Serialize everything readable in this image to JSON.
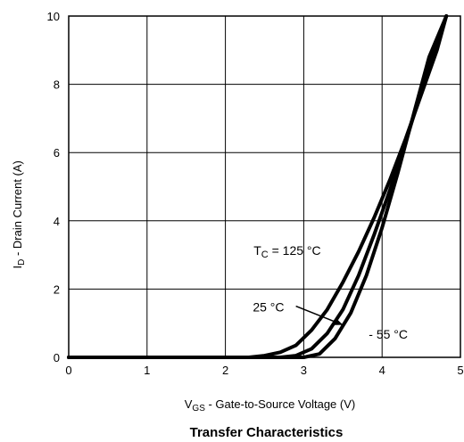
{
  "chart_data": {
    "type": "line",
    "title": "Transfer Characteristics",
    "xlabel": {
      "main": "V",
      "sub": "GS",
      "rest": " - Gate-to-Source Voltage (V)"
    },
    "ylabel": {
      "main": "I",
      "sub": "D",
      "rest": " - Drain Current (A)"
    },
    "xlim": [
      0,
      5
    ],
    "ylim": [
      0,
      10
    ],
    "xticks": [
      0,
      1,
      2,
      3,
      4,
      5
    ],
    "yticks": [
      0,
      2,
      4,
      6,
      8,
      10
    ],
    "grid": true,
    "series": [
      {
        "name": "125 °C",
        "x": [
          0,
          2.3,
          2.5,
          2.7,
          2.9,
          3.1,
          3.3,
          3.5,
          3.7,
          3.9,
          4.1,
          4.3,
          4.5,
          4.7,
          4.82
        ],
        "y": [
          0,
          0,
          0.05,
          0.15,
          0.35,
          0.8,
          1.4,
          2.2,
          3.1,
          4.1,
          5.2,
          6.4,
          7.7,
          9.0,
          10.0
        ]
      },
      {
        "name": "25 °C",
        "x": [
          0,
          2.7,
          2.9,
          3.1,
          3.3,
          3.5,
          3.7,
          3.9,
          4.1,
          4.3,
          4.5,
          4.7,
          4.82
        ],
        "y": [
          0,
          0,
          0.05,
          0.25,
          0.7,
          1.4,
          2.4,
          3.6,
          4.9,
          6.3,
          7.8,
          9.2,
          10.0
        ]
      },
      {
        "name": "- 55 °C",
        "x": [
          0,
          3.0,
          3.2,
          3.4,
          3.6,
          3.8,
          4.0,
          4.2,
          4.4,
          4.6,
          4.82
        ],
        "y": [
          0,
          0,
          0.1,
          0.55,
          1.3,
          2.4,
          3.8,
          5.4,
          7.1,
          8.8,
          10.0
        ]
      }
    ],
    "annotations": {
      "tc_prefix": "T",
      "tc_sub": "C",
      "tc_rest": " = 125 °C",
      "label_25": "25 °C",
      "label_m55": "- 55 °C"
    }
  }
}
